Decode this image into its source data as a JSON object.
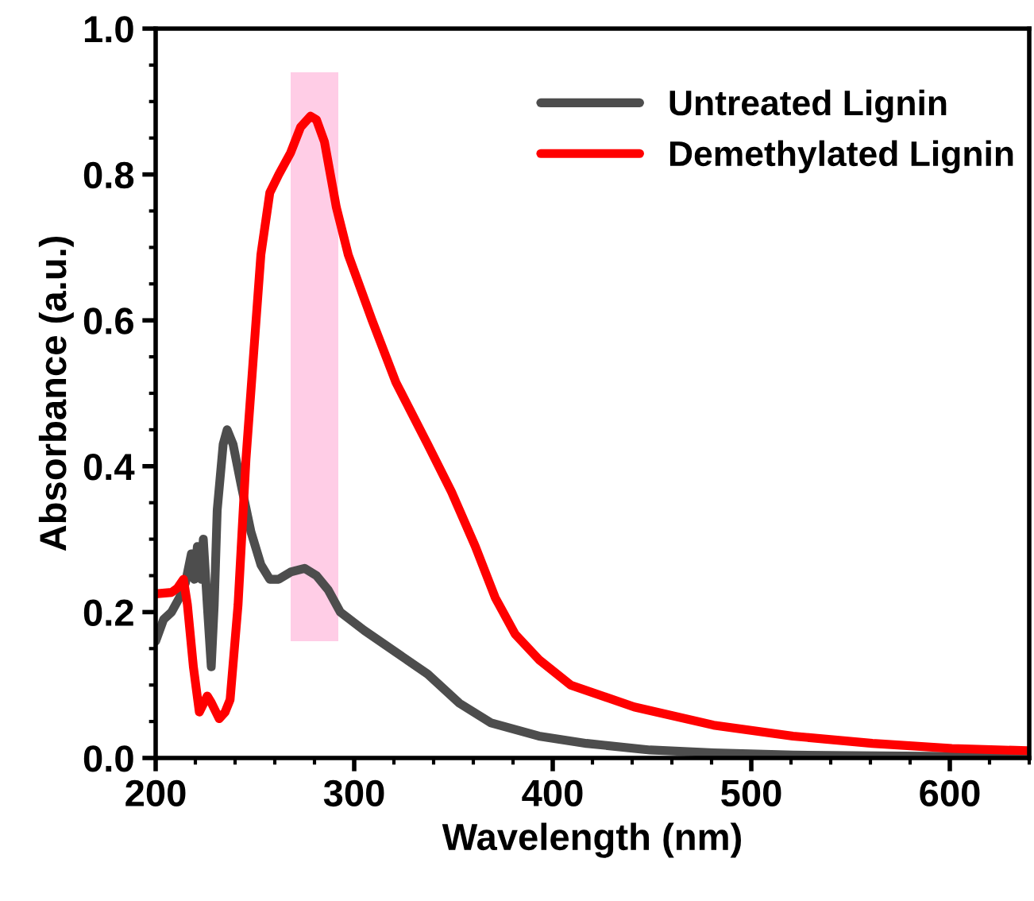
{
  "chart_data": {
    "type": "line",
    "xlabel": "Wavelength (nm)",
    "ylabel": "Absorbance (a.u.)",
    "xlim": [
      200,
      640
    ],
    "xticks": [
      200,
      300,
      400,
      500,
      600
    ],
    "ylim": [
      0,
      1.0
    ],
    "yticks": [
      {
        "value": 0,
        "label": "0.0"
      },
      0.2,
      0.4,
      0.6,
      0.8,
      {
        "value": 1.0,
        "label": "1.0"
      }
    ],
    "legend": "top right",
    "grid": false,
    "bands": [
      {
        "axis": "x",
        "from": 268,
        "to": 292,
        "color": "#ffc0e0"
      }
    ],
    "series": [
      {
        "name": "Untreated Lignin",
        "color": "#4d4d4d",
        "x": [
          200,
          204,
          208,
          212,
          215,
          218,
          219.5,
          221,
          223,
          224,
          226,
          228,
          229.5,
          231,
          234,
          236,
          239,
          243,
          248,
          253,
          257.5,
          262,
          268,
          275,
          281,
          287,
          293,
          305,
          321,
          337,
          353,
          369,
          393,
          417,
          449,
          481,
          521,
          601,
          639
        ],
        "values": [
          0.16,
          0.19,
          0.2,
          0.22,
          0.24,
          0.28,
          0.245,
          0.29,
          0.245,
          0.3,
          0.21,
          0.125,
          0.21,
          0.34,
          0.43,
          0.45,
          0.43,
          0.375,
          0.31,
          0.265,
          0.245,
          0.245,
          0.255,
          0.26,
          0.25,
          0.23,
          0.2,
          0.175,
          0.145,
          0.115,
          0.075,
          0.048,
          0.03,
          0.02,
          0.011,
          0.007,
          0.004,
          0.002,
          0.002
        ]
      },
      {
        "name": "Demethylated Lignin",
        "color": "#ff0000",
        "x": [
          200,
          208,
          211,
          214,
          216,
          219,
          222,
          226,
          228,
          232,
          235,
          237.5,
          241.5,
          245.5,
          249.5,
          253,
          257.5,
          262,
          268,
          273,
          278,
          281,
          285,
          291,
          297,
          309,
          321,
          337,
          349,
          361,
          371,
          381,
          393,
          409,
          441,
          481,
          521,
          561,
          601,
          639
        ],
        "values": [
          0.225,
          0.227,
          0.233,
          0.245,
          0.21,
          0.125,
          0.063,
          0.085,
          0.076,
          0.054,
          0.063,
          0.08,
          0.21,
          0.41,
          0.56,
          0.69,
          0.775,
          0.8,
          0.83,
          0.865,
          0.88,
          0.875,
          0.845,
          0.755,
          0.69,
          0.6,
          0.515,
          0.43,
          0.365,
          0.29,
          0.22,
          0.17,
          0.135,
          0.1,
          0.07,
          0.045,
          0.03,
          0.02,
          0.013,
          0.01
        ]
      }
    ]
  }
}
